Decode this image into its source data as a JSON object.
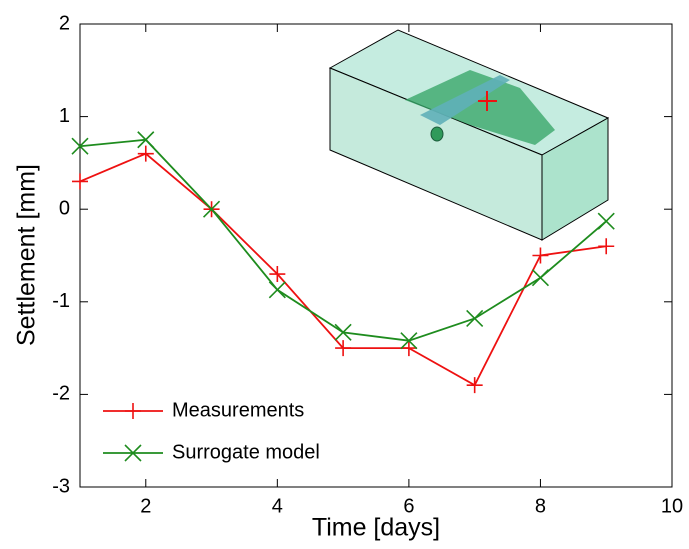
{
  "chart_data": {
    "type": "line",
    "xlabel": "Time [days]",
    "ylabel": "Settlement [mm]",
    "x": [
      1,
      2,
      3,
      4,
      5,
      6,
      7,
      8,
      9
    ],
    "series": [
      {
        "name": "Measurements",
        "color": "#ee1111",
        "marker": "plus",
        "values": [
          0.3,
          0.6,
          0,
          -0.7,
          -1.5,
          -1.5,
          -1.9,
          -0.5,
          -0.4
        ]
      },
      {
        "name": "Surrogate model",
        "color": "#1e8c1e",
        "marker": "cross",
        "values": [
          0.68,
          0.75,
          0,
          -0.87,
          -1.33,
          -1.42,
          -1.18,
          -0.74,
          -0.13
        ]
      }
    ],
    "xlim": [
      1,
      10
    ],
    "ylim": [
      -3,
      2
    ],
    "xticks": [
      2,
      4,
      6,
      8,
      10
    ],
    "yticks": [
      -3,
      -2,
      -1,
      0,
      1,
      2
    ],
    "legend": "lower left"
  }
}
